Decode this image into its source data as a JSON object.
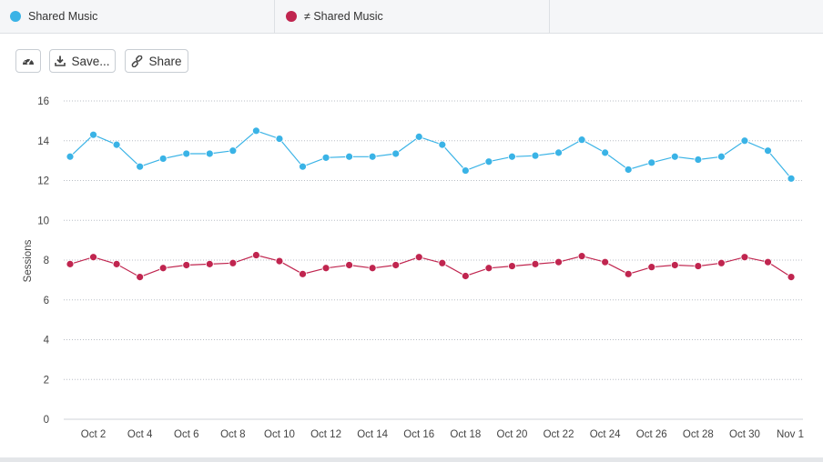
{
  "legend": {
    "series1": {
      "label": "Shared Music",
      "color": "#3ab3e6"
    },
    "series2": {
      "label": "≠ Shared Music",
      "color": "#c0254f"
    }
  },
  "toolbar": {
    "dashboard_icon": "dashboard-icon",
    "save_label": "Save...",
    "save_icon": "download-icon",
    "share_label": "Share",
    "share_icon": "link-icon"
  },
  "chart_data": {
    "type": "line",
    "ylabel": "Sessions",
    "xlabel": "",
    "ylim": [
      0,
      16
    ],
    "yticks": [
      0,
      2,
      4,
      6,
      8,
      10,
      12,
      14,
      16
    ],
    "grid": true,
    "x": [
      "Oct 1",
      "Oct 2",
      "Oct 3",
      "Oct 4",
      "Oct 5",
      "Oct 6",
      "Oct 7",
      "Oct 8",
      "Oct 9",
      "Oct 10",
      "Oct 11",
      "Oct 12",
      "Oct 13",
      "Oct 14",
      "Oct 15",
      "Oct 16",
      "Oct 17",
      "Oct 18",
      "Oct 19",
      "Oct 20",
      "Oct 21",
      "Oct 22",
      "Oct 23",
      "Oct 24",
      "Oct 25",
      "Oct 26",
      "Oct 27",
      "Oct 28",
      "Oct 29",
      "Oct 30",
      "Oct 31",
      "Nov 1"
    ],
    "xtick_labels": [
      "Oct 2",
      "Oct 4",
      "Oct 6",
      "Oct 8",
      "Oct 10",
      "Oct 12",
      "Oct 14",
      "Oct 16",
      "Oct 18",
      "Oct 20",
      "Oct 22",
      "Oct 24",
      "Oct 26",
      "Oct 28",
      "Oct 30",
      "Nov 1"
    ],
    "series": [
      {
        "name": "Shared Music",
        "color": "#3ab3e6",
        "values": [
          13.2,
          14.3,
          13.8,
          12.7,
          13.1,
          13.35,
          13.35,
          13.5,
          14.5,
          14.1,
          12.7,
          13.15,
          13.2,
          13.2,
          13.35,
          14.2,
          13.8,
          12.5,
          12.95,
          13.2,
          13.25,
          13.4,
          14.05,
          13.4,
          12.55,
          12.9,
          13.2,
          13.05,
          13.2,
          14.0,
          13.5,
          12.1
        ]
      },
      {
        "name": "≠ Shared Music",
        "color": "#c0254f",
        "values": [
          7.8,
          8.15,
          7.8,
          7.15,
          7.6,
          7.75,
          7.8,
          7.85,
          8.25,
          7.95,
          7.3,
          7.6,
          7.75,
          7.6,
          7.75,
          8.15,
          7.85,
          7.2,
          7.6,
          7.7,
          7.8,
          7.9,
          8.2,
          7.9,
          7.3,
          7.65,
          7.75,
          7.7,
          7.85,
          8.15,
          7.9,
          7.15
        ]
      }
    ]
  }
}
